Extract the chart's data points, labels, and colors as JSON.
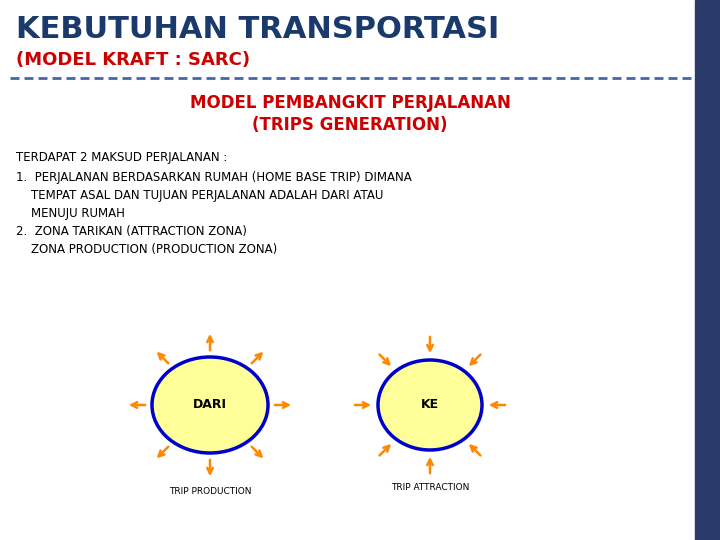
{
  "title1": "KEBUTUHAN TRANSPORTASI",
  "title2": "(MODEL KRAFT : SARC)",
  "subtitle1": "MODEL PEMBANGKIT PERJALANAN",
  "subtitle2": "(TRIPS GENERATION)",
  "line0": "TERDAPAT 2 MAKSUD PERJALANAN :",
  "line1a": "1.  PERJALANAN BERDASARKAN RUMAH (HOME BASE TRIP) DIMANA",
  "line1b": "    TEMPAT ASAL DAN TUJUAN PERJALANAN ADALAH DARI ATAU",
  "line1c": "    MENUJU RUMAH",
  "line2": "2.  ZONA TARIKAN (ATTRACTION ZONA)",
  "line3": "    ZONA PRODUCTION (PRODUCTION ZONA)",
  "diagram_label_left": "DARI",
  "diagram_label_right": "KE",
  "caption_left": "TRIP PRODUCTION",
  "caption_right": "TRIP ATTRACTION",
  "title1_color": "#1a3a6b",
  "title2_color": "#cc0000",
  "subtitle_color": "#cc0000",
  "body_color": "#000000",
  "ellipse_fill": "#ffff99",
  "ellipse_edge": "#0000cc",
  "arrow_color": "#ff8800",
  "dashed_line_color": "#4466aa",
  "bg_color": "#ffffff",
  "right_bar_color": "#2a3a6b",
  "title1_fontsize": 22,
  "title2_fontsize": 13,
  "subtitle_fontsize": 12,
  "body_fontsize": 8.5,
  "caption_fontsize": 6.5,
  "diagram_label_fontsize": 9
}
